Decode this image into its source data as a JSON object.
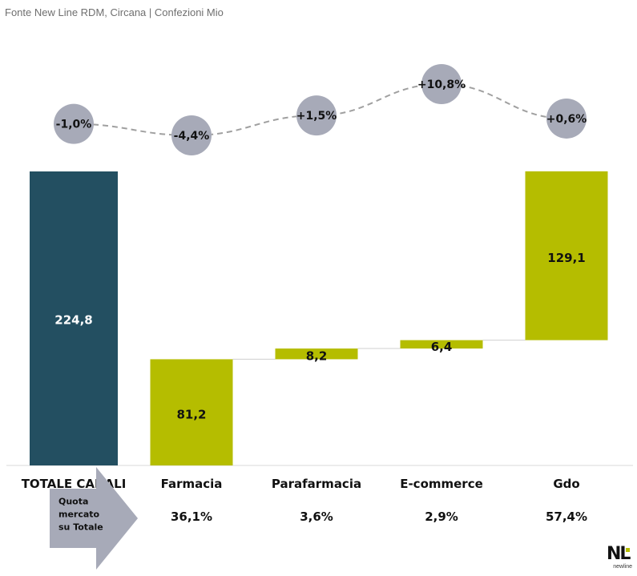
{
  "source": "Fonte New Line RDM, Circana | Confezioni Mio",
  "colors": {
    "total": "#234f61",
    "channel": "#b5bd00",
    "bubble": "#a7aab8",
    "arrow": "#a7aab8",
    "dashed": "#a0a0a0"
  },
  "chart_data": {
    "type": "waterfall",
    "unit": "Confezioni Mio",
    "categories": [
      "TOTALE CANALI",
      "Farmacia",
      "Parafarmacia",
      "E-commerce",
      "Gdo"
    ],
    "values": [
      224.8,
      81.2,
      8.2,
      6.4,
      129.1
    ],
    "value_labels": [
      "224,8",
      "81,2",
      "8,2",
      "6,4",
      "129,1"
    ],
    "growth": [
      -1.0,
      -4.4,
      1.5,
      10.8,
      0.6
    ],
    "growth_labels": [
      "-1,0%",
      "-4,4%",
      "+1,5%",
      "+10,8%",
      "+0,6%"
    ],
    "share_title": "Quota mercato su Totale",
    "share_title_lines": [
      "Quota",
      "mercato",
      "su Totale"
    ],
    "shares": [
      36.1,
      3.6,
      2.9,
      57.4
    ],
    "share_labels": [
      "36,1%",
      "3,6%",
      "2,9%",
      "57,4%"
    ]
  },
  "logo": {
    "mark": "NL",
    "wordmark": "newline"
  }
}
